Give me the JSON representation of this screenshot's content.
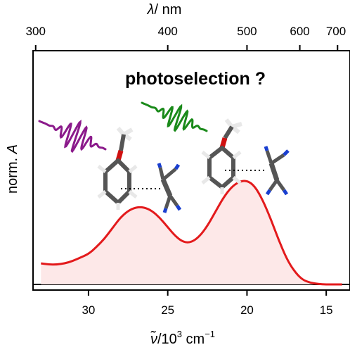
{
  "chart_data": {
    "type": "area",
    "title": "",
    "annotation": "photoselection ?",
    "ylabel_main": "norm. ",
    "ylabel_var": "A",
    "xlabel": {
      "nu": "ν̃",
      "unit_pre": "/10",
      "exp1": "3",
      "unit_mid": " cm",
      "exp2": "−1"
    },
    "top_axis": {
      "symbol": "λ",
      "unit": "/ nm"
    },
    "x_range": [
      33.5,
      13.5
    ],
    "y_range": [
      0,
      1.0
    ],
    "bottom_ticks": [
      {
        "value": 30,
        "label": "30"
      },
      {
        "value": 25,
        "label": "25"
      },
      {
        "value": 20,
        "label": "20"
      },
      {
        "value": 15,
        "label": "15"
      }
    ],
    "top_ticks": [
      {
        "value": 300,
        "label": "300"
      },
      {
        "value": 400,
        "label": "400"
      },
      {
        "value": 500,
        "label": "500"
      },
      {
        "value": 600,
        "label": "600"
      },
      {
        "value": 700,
        "label": "700"
      }
    ],
    "series": [
      {
        "color": "#e31a1c",
        "fill": "#fde8e8",
        "x": [
          33.0,
          32.5,
          32.0,
          31.5,
          31.0,
          30.5,
          30.0,
          29.5,
          29.0,
          28.5,
          28.0,
          27.5,
          27.0,
          26.5,
          26.0,
          25.5,
          25.0,
          24.5,
          24.0,
          23.5,
          23.0,
          22.5,
          22.0,
          21.5,
          21.0,
          20.5,
          20.0,
          19.5,
          19.0,
          18.5,
          18.0,
          17.5,
          17.0,
          16.5,
          16.0,
          15.5,
          15.0,
          14.5,
          14.0
        ],
        "y": [
          0.09,
          0.085,
          0.085,
          0.09,
          0.1,
          0.115,
          0.13,
          0.16,
          0.195,
          0.24,
          0.285,
          0.315,
          0.33,
          0.33,
          0.315,
          0.285,
          0.245,
          0.205,
          0.18,
          0.18,
          0.205,
          0.25,
          0.31,
          0.37,
          0.415,
          0.44,
          0.445,
          0.42,
          0.36,
          0.28,
          0.19,
          0.11,
          0.055,
          0.02,
          0.007,
          0.002,
          0.0,
          0.0,
          0.0
        ]
      }
    ],
    "colors": {
      "absorption_line": "#e31a1c",
      "absorption_fill": "#fde8e8",
      "pulse_purple": "#8b1a8b",
      "pulse_green": "#1a8a1a",
      "carbon": "#555555",
      "hydrogen": "#e8e8e8",
      "oxygen": "#d01010",
      "nitrogen": "#1a3fd0"
    }
  }
}
